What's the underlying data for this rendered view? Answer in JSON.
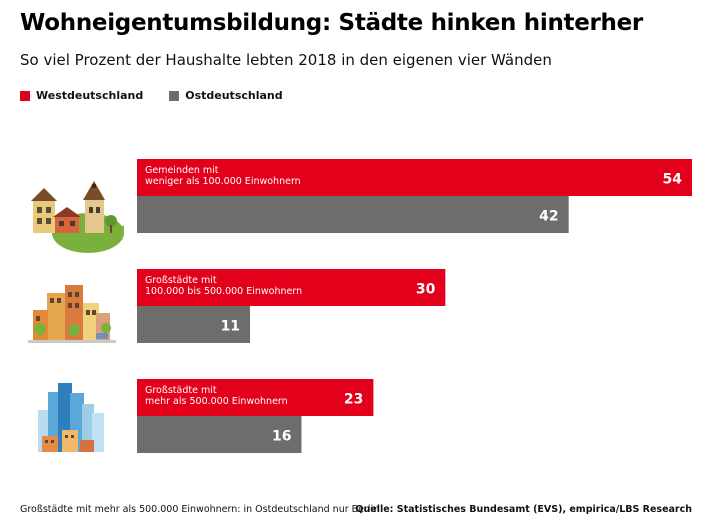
{
  "title": "Wohneigentumsbildung: Städte hinken hinterher",
  "subtitle": "So viel Prozent der Haushalte lebten 2018 in den eigenen vier Wänden",
  "footnote": "Großstädte mit mehr als 500.000 Einwohnern: in Ostdeutschland nur Berlin",
  "source": "Quelle: Statistisches Bundesamt (EVS), empirica/LBS Research",
  "colors": {
    "west": "#e2001a",
    "east": "#6d6e6c"
  },
  "chart_data": {
    "type": "bar",
    "orientation": "horizontal",
    "categories": [
      [
        "Gemeinden mit",
        "weniger als 100.000 Einwohnern"
      ],
      [
        "Großstädte mit",
        "100.000 bis 500.000 Einwohnern"
      ],
      [
        "Großstädte mit",
        "mehr als 500.000 Einwohnern"
      ]
    ],
    "category_icons": [
      "village-icon",
      "mid-city-icon",
      "skyscraper-city-icon"
    ],
    "series": [
      {
        "name": "Westdeutschland",
        "values": [
          54,
          30,
          23
        ]
      },
      {
        "name": "Ostdeutschland",
        "values": [
          42,
          11,
          16
        ]
      }
    ],
    "unit": "Prozent",
    "xlim": [
      0,
      54
    ],
    "grid": false,
    "legend": "top-left"
  }
}
